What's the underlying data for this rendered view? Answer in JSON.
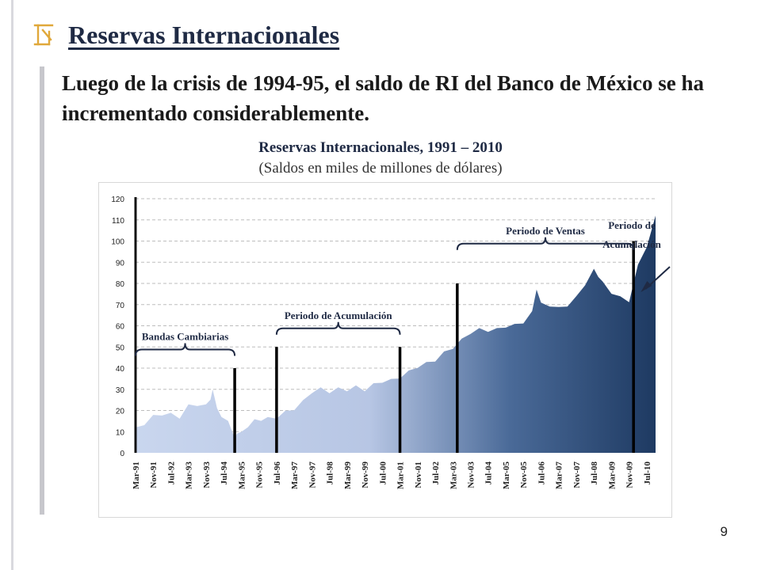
{
  "slide": {
    "title": "Reservas Internacionales",
    "subtitle": "Luego de la crisis de 1994-95, el saldo de RI del Banco de México se ha incrementado considerablemente.",
    "page_number": "9",
    "logo_icon": "banxico-logo-icon",
    "colors": {
      "title": "#1f2a44",
      "logo": "#e0a83a",
      "area_light": "#c9d6ee",
      "area_dark": "#1e3a62"
    }
  },
  "chart_data": {
    "type": "area",
    "title": "Reservas Internacionales, 1991 – 2010",
    "subtitle": "(Saldos en miles de millones de dólares)",
    "xlabel": "",
    "ylabel": "",
    "ylim": [
      0,
      120
    ],
    "yticks": [
      0,
      10,
      20,
      30,
      40,
      50,
      60,
      70,
      80,
      90,
      100,
      110,
      120
    ],
    "grid": "horizontal dashed",
    "xlim": [
      "1991-03",
      "2010-11"
    ],
    "xtick_labels": [
      "Mar-91",
      "Nov-91",
      "Jul-92",
      "Mar-93",
      "Nov-93",
      "Jul-94",
      "Mar-95",
      "Nov-95",
      "Jul-96",
      "Mar-97",
      "Nov-97",
      "Jul-98",
      "Mar-99",
      "Nov-99",
      "Jul-00",
      "Mar-01",
      "Nov-01",
      "Jul-02",
      "Mar-03",
      "Nov-03",
      "Jul-04",
      "Mar-05",
      "Nov-05",
      "Jul-06",
      "Mar-07",
      "Nov-07",
      "Jul-08",
      "Mar-09",
      "Nov-09",
      "Jul-10"
    ],
    "series": [
      {
        "x": [
          "1991-03",
          "1991-07",
          "1991-11",
          "1992-03",
          "1992-07",
          "1992-11",
          "1993-03",
          "1993-07",
          "1993-11",
          "1994-01",
          "1994-02",
          "1994-04",
          "1994-06",
          "1994-09",
          "1994-12",
          "1995-01",
          "1995-03",
          "1995-06",
          "1995-09",
          "1995-12",
          "1996-03",
          "1996-07",
          "1996-11",
          "1997-03",
          "1997-07",
          "1997-11",
          "1998-03",
          "1998-07",
          "1998-11",
          "1999-03",
          "1999-07",
          "1999-11",
          "2000-03",
          "2000-07",
          "2000-11",
          "2001-03",
          "2001-07",
          "2001-11",
          "2002-03",
          "2002-07",
          "2002-11",
          "2003-03",
          "2003-07",
          "2003-11",
          "2004-03",
          "2004-07",
          "2004-11",
          "2005-03",
          "2005-07",
          "2005-11",
          "2006-03",
          "2006-05",
          "2006-07",
          "2006-11",
          "2007-03",
          "2007-07",
          "2007-11",
          "2008-03",
          "2008-07",
          "2008-09",
          "2008-11",
          "2009-03",
          "2009-07",
          "2009-11",
          "2010-03",
          "2010-07",
          "2010-11"
        ],
        "values": [
          12,
          14,
          17,
          18.5,
          18,
          17,
          22,
          23,
          22,
          26,
          29,
          22,
          16,
          16,
          6,
          10,
          9,
          13,
          15,
          16,
          16,
          17,
          19,
          21,
          24,
          29,
          30,
          29,
          30,
          30,
          31,
          30,
          32,
          34,
          34,
          36,
          38,
          41,
          42,
          44,
          47,
          50,
          53,
          57,
          58,
          58,
          58,
          60,
          60,
          62,
          66,
          78,
          70,
          70,
          68,
          70,
          73,
          80,
          86,
          84,
          80,
          76,
          73,
          72,
          88,
          98,
          112
        ]
      }
    ],
    "markers": [
      {
        "x": "1994-12",
        "value": 40
      },
      {
        "x": "1996-07",
        "value": 50
      },
      {
        "x": "2001-03",
        "value": 50
      },
      {
        "x": "2003-05",
        "value": 80
      },
      {
        "x": "2010-01",
        "value": 100
      }
    ],
    "annotations": [
      {
        "label": "Bandas Cambiarias",
        "from": "1991-03",
        "to": "1994-12",
        "y": 54
      },
      {
        "label": "Periodo de Acumulación",
        "from": "1996-07",
        "to": "2001-03",
        "y": 64
      },
      {
        "label": "Periodo de Ventas",
        "from": "2003-05",
        "to": "2010-01",
        "y": 104
      },
      {
        "label_lines": [
          "Periodo de",
          "Acumulación"
        ],
        "arrow_to": "2010-05"
      }
    ]
  }
}
